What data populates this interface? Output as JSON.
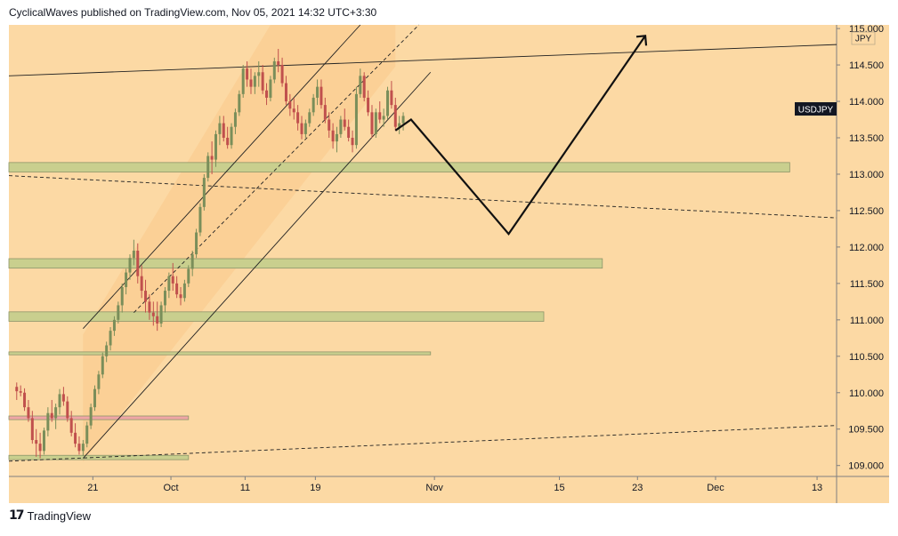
{
  "header": {
    "publish_text": "CyclicalWaves published on TradingView.com, Nov 05, 2021 14:32 UTC+3:30"
  },
  "footer": {
    "brand": "TradingView",
    "logo_glyph": "17"
  },
  "colors": {
    "background": "#fcd9a4",
    "zone_fill": "#c9cf8e",
    "zone_border": "#8d956a",
    "pink_zone": "#f0a6a6",
    "candle_up": "#7a8e5a",
    "candle_down": "#c0504d",
    "symbol_bg": "#131722"
  },
  "chart_data": {
    "type": "candlestick",
    "symbol": "USDJPY",
    "currency": "JPY",
    "ylim": [
      108.85,
      115.05
    ],
    "y_ticks": [
      "115.000",
      "114.500",
      "114.000",
      "113.500",
      "113.000",
      "112.500",
      "112.000",
      "111.500",
      "111.000",
      "110.500",
      "110.000",
      "109.500",
      "109.000"
    ],
    "x_ticks": [
      "21",
      "Oct",
      "11",
      "19",
      "Nov",
      "15",
      "23",
      "Dec",
      "13"
    ],
    "x_tick_positions": [
      14.75,
      24.75,
      34.25,
      43.25,
      58.5,
      74.5,
      84.5,
      94.5,
      107.5
    ],
    "xlim": [
      4,
      110
    ],
    "last_price_label": "USDJPY",
    "candles": [
      [
        5.0,
        110.08,
        110.14,
        109.9,
        110.02
      ],
      [
        5.5,
        110.02,
        110.1,
        109.95,
        110.0
      ],
      [
        6.0,
        110.0,
        110.06,
        109.75,
        109.8
      ],
      [
        6.5,
        109.8,
        109.9,
        109.6,
        109.65
      ],
      [
        7.0,
        109.65,
        109.75,
        109.3,
        109.35
      ],
      [
        7.5,
        109.35,
        109.5,
        109.12,
        109.3
      ],
      [
        8.0,
        109.3,
        109.45,
        109.1,
        109.2
      ],
      [
        8.5,
        109.2,
        109.52,
        109.15,
        109.48
      ],
      [
        9.0,
        109.48,
        109.8,
        109.4,
        109.72
      ],
      [
        9.5,
        109.72,
        109.9,
        109.6,
        109.65
      ],
      [
        10.0,
        109.65,
        109.85,
        109.5,
        109.8
      ],
      [
        10.5,
        109.8,
        110.05,
        109.7,
        109.98
      ],
      [
        11.0,
        109.98,
        110.08,
        109.82,
        109.88
      ],
      [
        11.5,
        109.88,
        109.95,
        109.6,
        109.65
      ],
      [
        12.0,
        109.65,
        109.75,
        109.4,
        109.45
      ],
      [
        12.5,
        109.45,
        109.58,
        109.25,
        109.3
      ],
      [
        13.0,
        109.3,
        109.4,
        109.15,
        109.2
      ],
      [
        13.5,
        109.2,
        109.35,
        109.13,
        109.3
      ],
      [
        14.0,
        109.3,
        109.6,
        109.25,
        109.55
      ],
      [
        14.5,
        109.55,
        109.85,
        109.5,
        109.8
      ],
      [
        15.0,
        109.8,
        110.1,
        109.75,
        110.05
      ],
      [
        15.5,
        110.05,
        110.3,
        109.98,
        110.25
      ],
      [
        16.0,
        110.25,
        110.55,
        110.2,
        110.5
      ],
      [
        16.5,
        110.5,
        110.7,
        110.42,
        110.65
      ],
      [
        17.0,
        110.65,
        110.9,
        110.58,
        110.85
      ],
      [
        17.5,
        110.85,
        111.05,
        110.78,
        111.0
      ],
      [
        18.0,
        111.0,
        111.25,
        110.95,
        111.2
      ],
      [
        18.5,
        111.2,
        111.5,
        111.1,
        111.45
      ],
      [
        19.0,
        111.45,
        111.7,
        111.35,
        111.65
      ],
      [
        19.5,
        111.65,
        111.9,
        111.55,
        111.85
      ],
      [
        20.0,
        111.85,
        112.1,
        111.75,
        111.95
      ],
      [
        20.5,
        111.95,
        112.05,
        111.5,
        111.6
      ],
      [
        21.0,
        111.6,
        111.75,
        111.3,
        111.4
      ],
      [
        21.5,
        111.4,
        111.55,
        111.1,
        111.25
      ],
      [
        22.0,
        111.25,
        111.35,
        111.0,
        111.1
      ],
      [
        22.5,
        111.1,
        111.25,
        110.92,
        111.05
      ],
      [
        23.0,
        111.05,
        111.25,
        110.85,
        110.95
      ],
      [
        23.5,
        110.95,
        111.25,
        110.9,
        111.2
      ],
      [
        24.0,
        111.2,
        111.45,
        111.1,
        111.4
      ],
      [
        24.5,
        111.4,
        111.65,
        111.3,
        111.6
      ],
      [
        25.0,
        111.6,
        111.78,
        111.4,
        111.5
      ],
      [
        25.5,
        111.5,
        111.6,
        111.3,
        111.35
      ],
      [
        26.0,
        111.35,
        111.45,
        111.2,
        111.3
      ],
      [
        26.5,
        111.3,
        111.55,
        111.25,
        111.5
      ],
      [
        27.0,
        111.5,
        111.75,
        111.45,
        111.7
      ],
      [
        27.5,
        111.7,
        111.95,
        111.6,
        111.9
      ],
      [
        28.0,
        111.9,
        112.25,
        111.85,
        112.2
      ],
      [
        28.5,
        112.2,
        112.6,
        112.15,
        112.55
      ],
      [
        29.0,
        112.55,
        113.0,
        112.5,
        112.95
      ],
      [
        29.5,
        112.95,
        113.3,
        112.9,
        113.25
      ],
      [
        30.0,
        113.25,
        113.45,
        113.0,
        113.2
      ],
      [
        30.5,
        113.2,
        113.6,
        113.1,
        113.55
      ],
      [
        31.0,
        113.55,
        113.8,
        113.4,
        113.7
      ],
      [
        31.5,
        113.7,
        113.8,
        113.45,
        113.5
      ],
      [
        32.0,
        113.5,
        113.65,
        113.35,
        113.4
      ],
      [
        32.5,
        113.4,
        113.7,
        113.35,
        113.65
      ],
      [
        33.0,
        113.65,
        113.9,
        113.55,
        113.85
      ],
      [
        33.5,
        113.85,
        114.15,
        113.8,
        114.1
      ],
      [
        34.0,
        114.1,
        114.5,
        114.05,
        114.45
      ],
      [
        34.5,
        114.45,
        114.55,
        114.2,
        114.3
      ],
      [
        35.0,
        114.3,
        114.45,
        114.1,
        114.2
      ],
      [
        35.5,
        114.2,
        114.4,
        114.1,
        114.35
      ],
      [
        36.0,
        114.35,
        114.55,
        114.2,
        114.4
      ],
      [
        36.5,
        114.4,
        114.5,
        114.1,
        114.15
      ],
      [
        37.0,
        114.15,
        114.25,
        113.95,
        114.05
      ],
      [
        37.5,
        114.05,
        114.35,
        114.0,
        114.3
      ],
      [
        38.0,
        114.3,
        114.6,
        114.25,
        114.55
      ],
      [
        38.5,
        114.55,
        114.72,
        114.4,
        114.5
      ],
      [
        39.0,
        114.5,
        114.6,
        114.2,
        114.25
      ],
      [
        39.5,
        114.25,
        114.35,
        113.95,
        114.0
      ],
      [
        40.0,
        114.0,
        114.1,
        113.8,
        113.9
      ],
      [
        40.5,
        113.9,
        114.05,
        113.75,
        113.85
      ],
      [
        41.0,
        113.85,
        113.95,
        113.6,
        113.7
      ],
      [
        41.5,
        113.7,
        113.8,
        113.48,
        113.55
      ],
      [
        42.0,
        113.55,
        113.75,
        113.5,
        113.7
      ],
      [
        42.5,
        113.7,
        113.9,
        113.65,
        113.85
      ],
      [
        43.0,
        113.85,
        114.1,
        113.8,
        114.05
      ],
      [
        43.5,
        114.05,
        114.3,
        113.95,
        114.2
      ],
      [
        44.0,
        114.2,
        114.3,
        113.9,
        113.95
      ],
      [
        44.5,
        113.95,
        114.05,
        113.7,
        113.75
      ],
      [
        45.0,
        113.75,
        113.85,
        113.5,
        113.6
      ],
      [
        45.5,
        113.6,
        113.7,
        113.35,
        113.45
      ],
      [
        46.0,
        113.45,
        113.65,
        113.3,
        113.55
      ],
      [
        46.5,
        113.55,
        113.8,
        113.5,
        113.75
      ],
      [
        47.0,
        113.75,
        113.9,
        113.6,
        113.65
      ],
      [
        47.5,
        113.65,
        113.75,
        113.45,
        113.5
      ],
      [
        48.0,
        113.5,
        113.6,
        113.3,
        113.4
      ],
      [
        48.5,
        113.4,
        114.2,
        113.35,
        114.1
      ],
      [
        49.0,
        114.1,
        114.45,
        114.05,
        114.35
      ],
      [
        49.5,
        114.35,
        114.4,
        114.0,
        114.05
      ],
      [
        50.0,
        114.05,
        114.15,
        113.8,
        113.85
      ],
      [
        50.5,
        113.85,
        113.95,
        113.5,
        113.55
      ],
      [
        51.0,
        113.55,
        113.9,
        113.5,
        113.85
      ],
      [
        51.5,
        113.85,
        114.0,
        113.7,
        113.75
      ],
      [
        52.0,
        113.75,
        113.9,
        113.65,
        113.8
      ],
      [
        52.5,
        113.8,
        114.2,
        113.75,
        114.15
      ],
      [
        53.0,
        114.15,
        114.28,
        113.9,
        113.95
      ],
      [
        53.5,
        113.95,
        114.05,
        113.6,
        113.65
      ],
      [
        54.0,
        113.65,
        113.8,
        113.55,
        113.7
      ],
      [
        54.5,
        113.7,
        113.85,
        113.6,
        113.8
      ]
    ]
  }
}
